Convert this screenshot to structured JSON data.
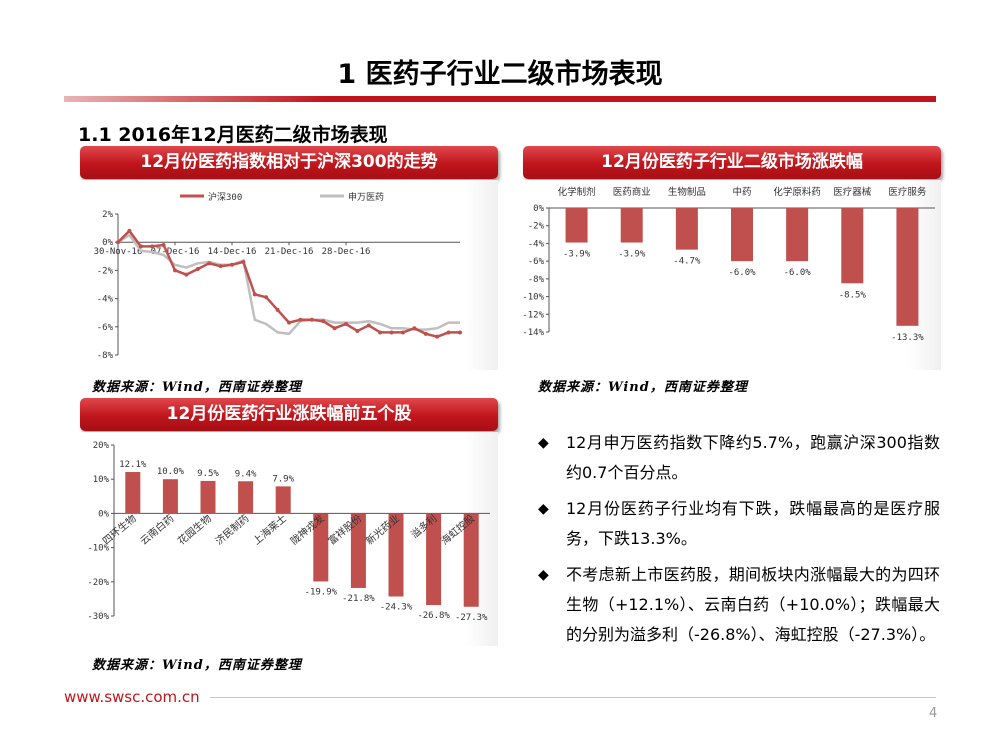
{
  "page_title": "1 医药子行业二级市场表现",
  "section_title": "1.1 2016年12月医药二级市场表现",
  "banners": {
    "line": "12月份医药指数相对于沪深300的走势",
    "industry": "12月份医药子行业二级市场涨跌幅",
    "stocks": "12月份医药行业涨跌幅前五个股"
  },
  "source_text": "数据来源：Wind，西南证券整理",
  "bullets": [
    "12月申万医药指数下降约5.7%，跑赢沪深300指数约0.7个百分点。",
    "12月份医药子行业均有下跌，跌幅最高的是医疗服务，下跌13.3%。",
    "不考虑新上市医药股，期间板块内涨幅最大的为四环生物（+12.1%）、云南白药（+10.0%）；跌幅最大的分别为溢多利（-26.8%）、海虹控股（-27.3%）。"
  ],
  "footer": {
    "url": "www.swsc.com.cn",
    "page": "4"
  },
  "colors": {
    "accent": "#c0151c",
    "bar": "#c0504d",
    "line_grey": "#bfbfbf"
  },
  "chart_data": [
    {
      "type": "line",
      "x_ticks": [
        "30-Nov-16",
        "07-Dec-16",
        "14-Dec-16",
        "21-Dec-16",
        "28-Dec-16"
      ],
      "ylim": [
        -8,
        2
      ],
      "y_ticks": [
        "2%",
        "0%",
        "-2%",
        "-4%",
        "-6%",
        "-8%"
      ],
      "legend_position": "top",
      "series": [
        {
          "name": "沪深300",
          "color": "#c0504d",
          "values": [
            0,
            0.8,
            -0.3,
            -0.3,
            -0.2,
            -2.0,
            -2.3,
            -1.9,
            -1.5,
            -1.7,
            -1.6,
            -1.4,
            -3.7,
            -3.9,
            -4.8,
            -5.7,
            -5.5,
            -5.5,
            -5.6,
            -6.1,
            -5.8,
            -6.3,
            -5.9,
            -6.4,
            -6.4,
            -6.4,
            -6.1,
            -6.5,
            -6.7,
            -6.4,
            -6.4
          ]
        },
        {
          "name": "申万医药",
          "color": "#bfbfbf",
          "values": [
            0,
            0.5,
            -0.6,
            -0.7,
            -0.9,
            -1.6,
            -1.8,
            -1.5,
            -1.4,
            -1.6,
            -1.6,
            -1.3,
            -5.5,
            -5.8,
            -6.4,
            -6.5,
            -5.6,
            -5.5,
            -5.5,
            -5.7,
            -5.7,
            -5.7,
            -5.6,
            -5.8,
            -6.1,
            -6.1,
            -6.2,
            -6.2,
            -6.1,
            -5.7,
            -5.7
          ]
        }
      ]
    },
    {
      "type": "bar",
      "categories": [
        "化学制剂",
        "医药商业",
        "生物制品",
        "中药",
        "化学原料药",
        "医疗器械",
        "医疗服务"
      ],
      "values": [
        -3.9,
        -3.9,
        -4.7,
        -6.0,
        -6.0,
        -8.5,
        -13.3
      ],
      "value_labels": [
        "-3.9%",
        "-3.9%",
        "-4.7%",
        "-6.0%",
        "-6.0%",
        "-8.5%",
        "-13.3%"
      ],
      "ylim": [
        -14,
        0
      ],
      "y_ticks": [
        "0%",
        "-2%",
        "-4%",
        "-6%",
        "-8%",
        "-10%",
        "-12%",
        "-14%"
      ]
    },
    {
      "type": "bar",
      "categories": [
        "四环生物",
        "云南白药",
        "花园生物",
        "济民制药",
        "上海莱士",
        "陇神戎发",
        "富祥股份",
        "新光药业",
        "溢多利",
        "海虹控股"
      ],
      "values": [
        12.1,
        10.0,
        9.5,
        9.4,
        7.9,
        -19.9,
        -21.8,
        -24.3,
        -26.8,
        -27.3
      ],
      "value_labels": [
        "12.1%",
        "10.0%",
        "9.5%",
        "9.4%",
        "7.9%",
        "-19.9%",
        "-21.8%",
        "-24.3%",
        "-26.8%",
        "-27.3%"
      ],
      "ylim": [
        -30,
        20
      ],
      "y_ticks": [
        "20%",
        "10%",
        "0%",
        "-10%",
        "-20%",
        "-30%"
      ]
    }
  ]
}
